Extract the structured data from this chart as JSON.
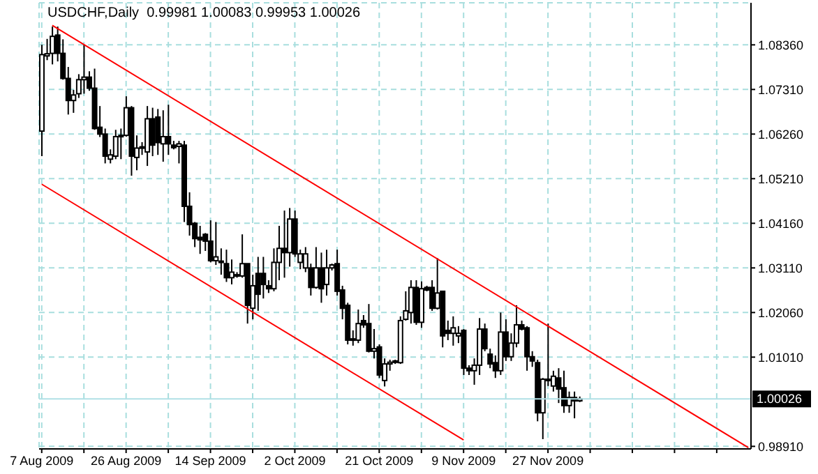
{
  "chart_data": {
    "type": "candlestick",
    "title": "USDCHF,Daily  0.99981 1.00083 0.99953 1.00026",
    "categories": [
      "7 Aug 2009",
      null,
      null,
      null,
      null,
      null,
      null,
      null,
      null,
      null,
      null,
      null,
      null,
      null,
      null,
      null,
      "26 Aug 2009",
      null,
      null,
      null,
      null,
      null,
      null,
      null,
      null,
      null,
      null,
      null,
      null,
      null,
      null,
      null,
      "14 Sep 2009",
      null,
      null,
      null,
      null,
      null,
      null,
      null,
      null,
      null,
      null,
      null,
      null,
      null,
      null,
      null,
      "2 Oct 2009",
      null,
      null,
      null,
      null,
      null,
      null,
      null,
      null,
      null,
      null,
      null,
      null,
      null,
      null,
      null,
      "21 Oct 2009",
      null,
      null,
      null,
      null,
      null,
      null,
      null,
      null,
      null,
      null,
      null,
      null,
      null,
      null,
      null,
      "9 Nov 2009",
      null,
      null,
      null,
      null,
      null,
      null,
      null,
      null,
      null,
      null,
      null,
      null,
      null,
      null,
      null,
      "27 Nov 2009",
      null,
      null,
      null,
      null,
      null,
      null,
      null,
      null,
      null,
      null,
      null,
      null,
      null,
      null,
      null,
      null,
      null,
      null,
      null,
      null,
      null,
      null,
      null,
      null,
      null,
      null,
      null,
      null,
      null,
      null,
      null,
      null,
      null,
      null,
      null,
      null,
      null,
      null
    ],
    "ohlc": [
      [
        1.0633,
        1.0836,
        1.0574,
        1.0813
      ],
      [
        1.081,
        1.085,
        1.08,
        1.0815
      ],
      [
        1.0816,
        1.0879,
        1.079,
        1.0856
      ],
      [
        1.0859,
        1.0879,
        1.0797,
        1.0816
      ],
      [
        1.0816,
        1.0849,
        1.0754,
        1.0757
      ],
      [
        1.0757,
        1.0784,
        1.0672,
        1.0705
      ],
      [
        1.0705,
        1.073,
        1.0676,
        1.0718
      ],
      [
        1.0721,
        1.0767,
        1.0711,
        1.0754
      ],
      [
        1.0754,
        1.0836,
        1.0721,
        1.076
      ],
      [
        1.076,
        1.0774,
        1.0728,
        1.0734
      ],
      [
        1.0734,
        1.078,
        1.0636,
        1.0639
      ],
      [
        1.0642,
        1.0692,
        1.0619,
        1.0626
      ],
      [
        1.0626,
        1.0639,
        1.0557,
        1.0574
      ],
      [
        1.0567,
        1.059,
        1.0557,
        1.0577
      ],
      [
        1.0574,
        1.0636,
        1.0567,
        1.062
      ],
      [
        1.062,
        1.0639,
        1.0567,
        1.0623
      ],
      [
        1.0623,
        1.0715,
        1.062,
        1.0688
      ],
      [
        1.0688,
        1.0692,
        1.0528,
        1.0574
      ],
      [
        1.0571,
        1.0623,
        1.0541,
        1.0593
      ],
      [
        1.0593,
        1.0607,
        1.0577,
        1.0596
      ],
      [
        1.0584,
        1.0692,
        1.0551,
        1.0662
      ],
      [
        1.0662,
        1.0688,
        1.0574,
        1.06
      ],
      [
        1.0666,
        1.0685,
        1.0577,
        1.0606
      ],
      [
        1.0603,
        1.0682,
        1.0561,
        1.062
      ],
      [
        1.062,
        1.0695,
        1.0577,
        1.0603
      ],
      [
        1.06,
        1.061,
        1.059,
        1.0594
      ],
      [
        1.0597,
        1.061,
        1.0557,
        1.0603
      ],
      [
        1.06,
        1.061,
        1.0419,
        1.0456
      ],
      [
        1.0456,
        1.0489,
        1.0387,
        1.0413
      ],
      [
        1.0416,
        1.0419,
        1.036,
        1.038
      ],
      [
        1.0383,
        1.041,
        1.0344,
        1.0377
      ],
      [
        1.039,
        1.0393,
        1.0351,
        1.0374
      ],
      [
        1.0374,
        1.0423,
        1.0324,
        1.0328
      ],
      [
        1.0328,
        1.0419,
        1.0318,
        1.0337
      ],
      [
        1.0324,
        1.0357,
        1.0295,
        1.0327
      ],
      [
        1.0321,
        1.0354,
        1.0278,
        1.0288
      ],
      [
        1.0288,
        1.0331,
        1.0272,
        1.0301
      ],
      [
        1.0292,
        1.0301,
        1.0288,
        1.0295
      ],
      [
        1.0292,
        1.039,
        1.0288,
        1.0321
      ],
      [
        1.0321,
        1.0321,
        1.018,
        1.0223
      ],
      [
        1.0216,
        1.0295,
        1.019,
        1.0269
      ],
      [
        1.0298,
        1.0337,
        1.021,
        1.0249
      ],
      [
        1.0298,
        1.0337,
        1.0239,
        1.0272
      ],
      [
        1.0269,
        1.0282,
        1.0252,
        1.0262
      ],
      [
        1.0262,
        1.0357,
        1.0256,
        1.0324
      ],
      [
        1.0324,
        1.041,
        1.0282,
        1.0357
      ],
      [
        1.0357,
        1.0446,
        1.0288,
        1.0347
      ],
      [
        1.0347,
        1.0452,
        1.0314,
        1.0426
      ],
      [
        1.0426,
        1.0446,
        1.0337,
        1.0344
      ],
      [
        1.0324,
        1.0354,
        1.0308,
        1.0344
      ],
      [
        1.0311,
        1.036,
        1.0301,
        1.0344
      ],
      [
        1.0311,
        1.0321,
        1.0246,
        1.0265
      ],
      [
        1.0265,
        1.036,
        1.0262,
        1.0311
      ],
      [
        1.0311,
        1.0347,
        1.0229,
        1.0262
      ],
      [
        1.0272,
        1.0354,
        1.0246,
        1.0311
      ],
      [
        1.0311,
        1.0321,
        1.0305,
        1.0318
      ],
      [
        1.0321,
        1.0354,
        1.0246,
        1.0256
      ],
      [
        1.0259,
        1.0269,
        1.019,
        1.0216
      ],
      [
        1.0223,
        1.0229,
        1.0131,
        1.0141
      ],
      [
        1.0141,
        1.0164,
        1.0128,
        1.0144
      ],
      [
        1.0141,
        1.0213,
        1.0134,
        1.018
      ],
      [
        1.0187,
        1.02,
        1.017,
        1.0177
      ],
      [
        1.018,
        1.0226,
        1.0112,
        1.0115
      ],
      [
        1.0115,
        1.0167,
        1.0098,
        1.0121
      ],
      [
        1.0125,
        1.0131,
        1.0052,
        1.0059
      ],
      [
        1.0046,
        1.0098,
        1.0032,
        1.0085
      ],
      [
        1.0085,
        1.0095,
        1.0069,
        1.0089
      ],
      [
        1.0092,
        1.0095,
        1.0085,
        1.0089
      ],
      [
        1.0088,
        1.0197,
        1.0085,
        1.0187
      ],
      [
        1.019,
        1.0256,
        1.0187,
        1.021
      ],
      [
        1.0206,
        1.0282,
        1.018,
        1.0265
      ],
      [
        1.0265,
        1.0282,
        1.0177,
        1.0183
      ],
      [
        1.0183,
        1.0279,
        1.017,
        1.0262
      ],
      [
        1.0265,
        1.0269,
        1.0256,
        1.0259
      ],
      [
        1.0265,
        1.0282,
        1.021,
        1.0216
      ],
      [
        1.0216,
        1.0334,
        1.0213,
        1.0252
      ],
      [
        1.0256,
        1.0256,
        1.0124,
        1.0151
      ],
      [
        1.0164,
        1.0187,
        1.0141,
        1.0157
      ],
      [
        1.0157,
        1.0197,
        1.0128,
        1.017
      ],
      [
        1.0151,
        1.0174,
        1.0134,
        1.0157
      ],
      [
        1.0164,
        1.0167,
        1.0059,
        1.0075
      ],
      [
        1.0075,
        1.0082,
        1.0059,
        1.0069
      ],
      [
        1.0069,
        1.0098,
        1.0036,
        1.0082
      ],
      [
        1.0082,
        1.0193,
        1.0059,
        1.0167
      ],
      [
        1.0167,
        1.018,
        1.0115,
        1.0121
      ],
      [
        1.0108,
        1.0121,
        1.0075,
        1.0085
      ],
      [
        1.0088,
        1.0105,
        1.0052,
        1.0069
      ],
      [
        1.0069,
        1.0206,
        1.0059,
        1.016
      ],
      [
        1.016,
        1.019,
        1.0092,
        1.0102
      ],
      [
        1.0102,
        1.0157,
        1.0092,
        1.0134
      ],
      [
        1.0134,
        1.0223,
        1.0124,
        1.0177
      ],
      [
        1.0177,
        1.0187,
        1.0164,
        1.0167
      ],
      [
        1.017,
        1.0174,
        1.0069,
        1.0102
      ],
      [
        1.0102,
        1.0115,
        1.0078,
        1.0092
      ],
      [
        1.0088,
        1.0095,
        0.995,
        0.997
      ],
      [
        0.997,
        1.0052,
        0.9908,
        1.0049
      ],
      [
        1.0049,
        1.018,
        1.0033,
        1.0046
      ],
      [
        1.0033,
        1.0069,
        1.002,
        1.0056
      ],
      [
        1.0052,
        1.0075,
        0.9993,
        1.0026
      ],
      [
        1.0029,
        1.0069,
        0.997,
        0.9987
      ],
      [
        0.9987,
        1.002,
        0.997,
        1.0006
      ],
      [
        1.0006,
        1.002,
        0.9957,
        0.9998
      ],
      [
        0.99981,
        1.00083,
        0.99953,
        1.00026
      ],
      null,
      null,
      null,
      null,
      null,
      null,
      null,
      null,
      null,
      null,
      null,
      null,
      null,
      null,
      null,
      null,
      null,
      null,
      null,
      null,
      null,
      null,
      null,
      null,
      null,
      null,
      null,
      null,
      null,
      null,
      null,
      null
    ],
    "color": "#000000",
    "series": [
      {
        "type": "line",
        "color": "#ff0000",
        "values": [
          null,
          null,
          1.0882,
          null,
          null,
          null,
          null,
          null,
          null,
          null,
          null,
          null,
          null,
          null,
          null,
          null,
          null,
          null,
          null,
          null,
          null,
          null,
          null,
          null,
          null,
          null,
          null,
          null,
          null,
          null,
          null,
          null,
          null,
          null,
          null,
          null,
          null,
          null,
          null,
          null,
          null,
          null,
          null,
          null,
          null,
          null,
          null,
          null,
          null,
          null,
          null,
          null,
          null,
          null,
          null,
          null,
          null,
          null,
          null,
          null,
          null,
          null,
          null,
          null,
          null,
          null,
          null,
          null,
          null,
          null,
          null,
          null,
          null,
          null,
          null,
          null,
          null,
          null,
          null,
          null,
          null,
          null,
          null,
          null,
          null,
          null,
          null,
          null,
          null,
          null,
          null,
          null,
          null,
          null,
          null,
          null,
          null,
          null,
          null,
          null,
          null,
          null,
          null,
          null,
          null,
          null,
          null,
          null,
          null,
          null,
          null,
          null,
          null,
          null,
          null,
          null,
          null,
          null,
          null,
          null,
          null,
          null,
          null,
          null,
          null,
          null,
          null,
          null,
          null,
          null,
          null,
          null,
          null,
          null,
          0.9888
        ]
      },
      {
        "type": "line",
        "color": "#ff0000",
        "values": [
          1.0508,
          null,
          null,
          null,
          null,
          null,
          null,
          null,
          null,
          null,
          null,
          null,
          null,
          null,
          null,
          null,
          null,
          null,
          null,
          null,
          null,
          null,
          null,
          null,
          null,
          null,
          null,
          null,
          null,
          null,
          null,
          null,
          null,
          null,
          null,
          null,
          null,
          null,
          null,
          null,
          null,
          null,
          null,
          null,
          null,
          null,
          null,
          null,
          null,
          null,
          null,
          null,
          null,
          null,
          null,
          null,
          null,
          null,
          null,
          null,
          null,
          null,
          null,
          null,
          null,
          null,
          null,
          null,
          null,
          null,
          null,
          null,
          null,
          null,
          null,
          null,
          null,
          null,
          null,
          null,
          0.9906,
          null,
          null,
          null,
          null,
          null,
          null,
          null,
          null,
          null,
          null,
          null,
          null,
          null,
          null,
          null,
          null,
          null,
          null,
          null,
          null,
          null,
          null,
          null,
          null,
          null,
          null,
          null,
          null,
          null,
          null,
          null,
          null,
          null,
          null,
          null,
          null,
          null,
          null,
          null,
          null,
          null,
          null,
          null,
          null,
          null,
          null,
          null,
          null,
          null,
          null,
          null,
          null,
          null,
          null
        ]
      }
    ],
    "ylim": [
      0.9885,
      1.0935
    ],
    "yticks": [
      {
        "value": 0.9891,
        "label": "0.98910"
      },
      {
        "value": 1.0101,
        "label": "1.01010"
      },
      {
        "value": 1.0206,
        "label": "1.02060"
      },
      {
        "value": 1.0311,
        "label": "1.03110"
      },
      {
        "value": 1.0416,
        "label": "1.04160"
      },
      {
        "value": 1.0521,
        "label": "1.05210"
      },
      {
        "value": 1.0626,
        "label": "1.06260"
      },
      {
        "value": 1.0731,
        "label": "1.07310"
      },
      {
        "value": 1.0836,
        "label": "1.08360"
      }
    ],
    "ref_lines": [
      {
        "axis": "y",
        "value": 1.00026,
        "label": "1.00026",
        "color": "#b0e0e6"
      }
    ],
    "grid": true,
    "line_style": "solid"
  }
}
